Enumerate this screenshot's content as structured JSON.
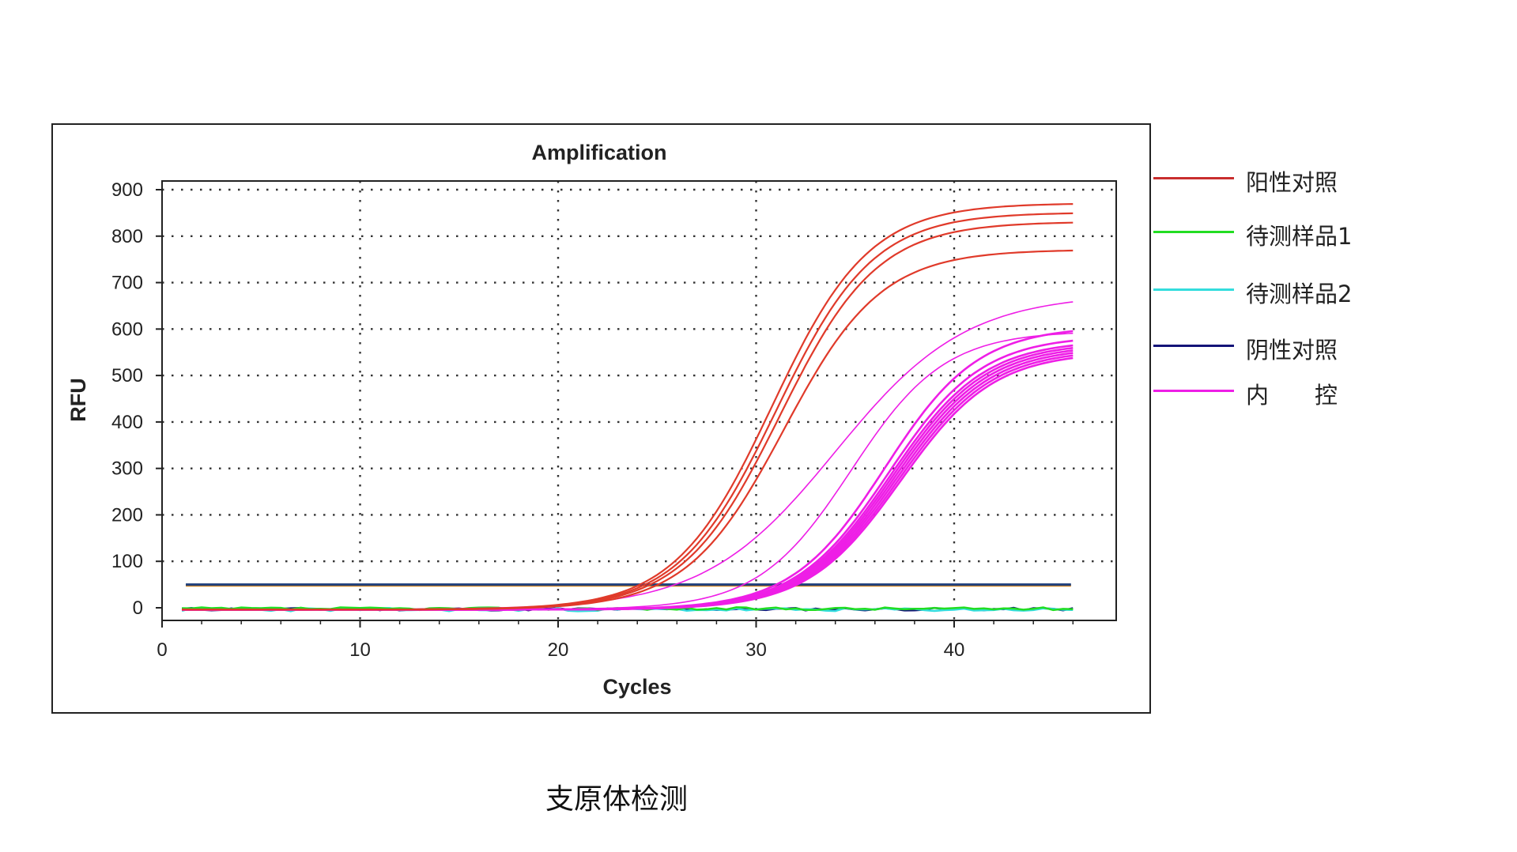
{
  "chart_data": {
    "type": "line",
    "title": "Amplification",
    "xlabel": "Cycles",
    "ylabel": "RFU",
    "xlim": [
      0,
      48
    ],
    "ylim": [
      -20,
      910
    ],
    "xticks": [
      0,
      10,
      20,
      30,
      40
    ],
    "yticks": [
      0,
      100,
      200,
      300,
      400,
      500,
      600,
      700,
      800,
      900
    ],
    "grid": "dotted",
    "legend_position": "right",
    "threshold": 48,
    "series": [
      {
        "name": "阳性对照",
        "color": "#e03a2a",
        "plateaus": [
          875,
          855,
          835,
          775
        ],
        "midpoints": [
          30.8,
          31.0,
          31.2,
          31.4
        ]
      },
      {
        "name": "待测样品1",
        "color": "#22dd22",
        "plateau": 0
      },
      {
        "name": "待测样品2",
        "color": "#33dddd",
        "plateau": 0
      },
      {
        "name": "阴性对照",
        "color": "#141478",
        "plateau": 0
      },
      {
        "name": "内　　控",
        "color": "#ee1ee6",
        "plateaus": [
          680,
          600,
          610,
          590,
          580,
          575,
          570,
          565,
          560,
          555
        ],
        "midpoints": [
          34.0,
          34.8,
          36.5,
          36.7,
          36.8,
          36.9,
          37.0,
          37.1,
          37.2,
          37.3
        ]
      }
    ]
  },
  "legend": [
    {
      "label": "阳性对照",
      "color": "#c92e2e"
    },
    {
      "label": "待测样品1",
      "color": "#22dd22"
    },
    {
      "label": "待测样品2",
      "color": "#33dddd"
    },
    {
      "label": "阴性对照",
      "color": "#141478"
    },
    {
      "label": "内　　控",
      "color": "#ee1ee6"
    }
  ],
  "caption": "支原体检测"
}
